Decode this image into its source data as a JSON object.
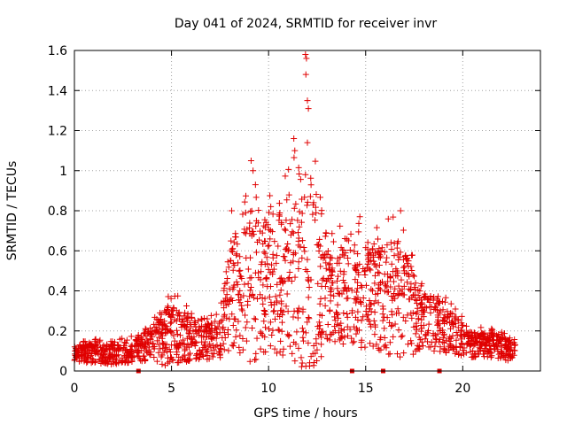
{
  "chart_data": {
    "type": "scatter",
    "title": "Day 041 of 2024, SRMTID for receiver invr",
    "xlabel": "GPS time / hours",
    "ylabel": "SRMTID / TECUs",
    "xlim": [
      0,
      24
    ],
    "ylim": [
      0,
      1.6
    ],
    "x_ticks": [
      "0",
      "5",
      "10",
      "15",
      "20"
    ],
    "y_ticks": [
      "0",
      "0.2",
      "0.4",
      "0.6",
      "0.8",
      "1",
      "1.2",
      "1.4",
      "1.6"
    ],
    "grid": true,
    "marker": "+",
    "color": "#e00000",
    "peak_points": [
      {
        "x": 11.9,
        "y": 1.58
      },
      {
        "x": 11.95,
        "y": 1.56
      },
      {
        "x": 11.92,
        "y": 1.48
      },
      {
        "x": 12.0,
        "y": 1.35
      },
      {
        "x": 12.05,
        "y": 1.31
      },
      {
        "x": 11.3,
        "y": 1.16
      },
      {
        "x": 11.35,
        "y": 1.1
      },
      {
        "x": 9.1,
        "y": 1.05
      },
      {
        "x": 9.2,
        "y": 1.0
      },
      {
        "x": 12.0,
        "y": 1.14
      },
      {
        "x": 11.9,
        "y": 0.98
      },
      {
        "x": 16.8,
        "y": 0.8
      },
      {
        "x": 8.1,
        "y": 0.8
      },
      {
        "x": 14.7,
        "y": 0.77
      }
    ],
    "zero_markers_x": [
      3.3,
      14.3,
      15.9,
      18.8
    ],
    "envelope": [
      {
        "x": 0.0,
        "median": 0.08,
        "high": 0.14
      },
      {
        "x": 1.0,
        "median": 0.09,
        "high": 0.16
      },
      {
        "x": 2.0,
        "median": 0.08,
        "high": 0.15
      },
      {
        "x": 3.0,
        "median": 0.1,
        "high": 0.18
      },
      {
        "x": 4.0,
        "median": 0.13,
        "high": 0.24
      },
      {
        "x": 4.7,
        "median": 0.17,
        "high": 0.38
      },
      {
        "x": 5.5,
        "median": 0.18,
        "high": 0.38
      },
      {
        "x": 6.5,
        "median": 0.14,
        "high": 0.26
      },
      {
        "x": 7.5,
        "median": 0.16,
        "high": 0.3
      },
      {
        "x": 8.2,
        "median": 0.4,
        "high": 0.8
      },
      {
        "x": 9.2,
        "median": 0.45,
        "high": 1.05
      },
      {
        "x": 10.2,
        "median": 0.42,
        "high": 0.85
      },
      {
        "x": 11.3,
        "median": 0.45,
        "high": 1.16
      },
      {
        "x": 12.0,
        "median": 0.45,
        "high": 1.3
      },
      {
        "x": 13.0,
        "median": 0.38,
        "high": 0.7
      },
      {
        "x": 14.3,
        "median": 0.38,
        "high": 0.75
      },
      {
        "x": 15.5,
        "median": 0.36,
        "high": 0.72
      },
      {
        "x": 16.8,
        "median": 0.36,
        "high": 0.8
      },
      {
        "x": 18.0,
        "median": 0.26,
        "high": 0.48
      },
      {
        "x": 19.3,
        "median": 0.2,
        "high": 0.36
      },
      {
        "x": 20.5,
        "median": 0.13,
        "high": 0.22
      },
      {
        "x": 21.5,
        "median": 0.13,
        "high": 0.22
      },
      {
        "x": 22.7,
        "median": 0.09,
        "high": 0.16
      }
    ]
  }
}
